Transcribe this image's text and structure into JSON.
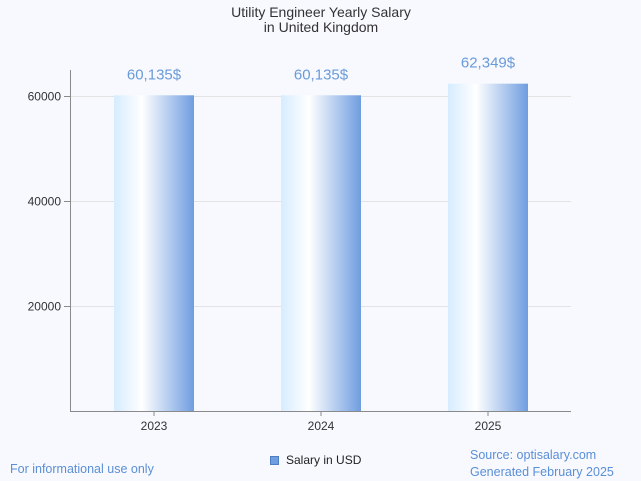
{
  "chart_data": {
    "type": "bar",
    "title_lines": [
      "Utility Engineer Yearly Salary",
      "in United Kingdom"
    ],
    "categories": [
      "2023",
      "2024",
      "2025"
    ],
    "series": [
      {
        "name": "Salary in USD",
        "values": [
          60135,
          60135,
          62349
        ],
        "labels": [
          "60,135$",
          "60,135$",
          "62,349$"
        ]
      }
    ],
    "y_ticks": [
      20000,
      40000,
      60000
    ],
    "ylim": [
      0,
      65000
    ],
    "grid": true,
    "legend_position": "bottom"
  },
  "colors": {
    "bar_light": "#d6ecff",
    "bar_white": "#ffffff",
    "bar_dark": "#6f9de0",
    "label": "#6a9ad8",
    "grid": "#e3e3e3",
    "axis": "#8a8a8a"
  },
  "footer": {
    "left_note": "For informational use only",
    "source": "Source: optisalary.com",
    "generated": "Generated February 2025"
  }
}
